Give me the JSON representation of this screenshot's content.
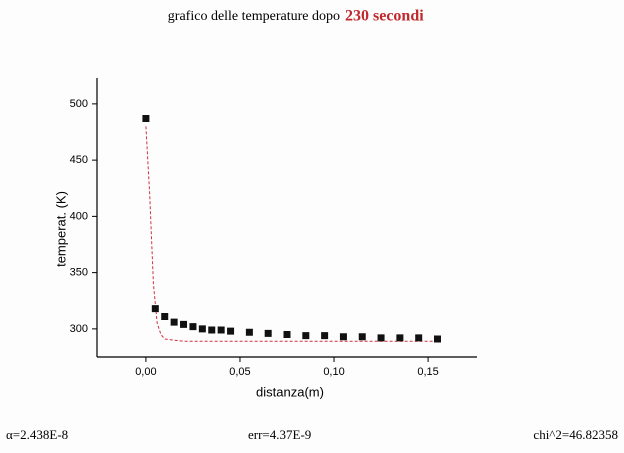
{
  "chart_data": {
    "type": "scatter",
    "title": "grafico delle temperature dopo",
    "title_highlight": "230 secondi",
    "x_label": "distanza(m)",
    "y_label": "temperat. (K)",
    "xlim": [
      -0.026,
      0.176
    ],
    "ylim": [
      275,
      523
    ],
    "xticks": [
      {
        "value": 0,
        "label": "0,00"
      },
      {
        "value": 0.05,
        "label": "0,05"
      },
      {
        "value": 0.1,
        "label": "0,10"
      },
      {
        "value": 0.15,
        "label": "0,15"
      }
    ],
    "yticks": [
      300,
      350,
      400,
      450,
      500
    ],
    "series": [
      {
        "kind": "points",
        "color": "#111111",
        "x": [
          0,
          0.005,
          0.01,
          0.015,
          0.02,
          0.025,
          0.03,
          0.035,
          0.04,
          0.045,
          0.055,
          0.065,
          0.075,
          0.085,
          0.095,
          0.105,
          0.115,
          0.125,
          0.135,
          0.145,
          0.155
        ],
        "values": [
          487,
          318,
          311,
          306,
          304,
          302,
          300,
          299,
          299,
          298,
          297,
          296,
          295,
          294,
          294,
          293,
          293,
          292,
          292,
          292,
          291
        ]
      },
      {
        "kind": "fit",
        "color": "#d03040",
        "x": [
          0,
          0.002,
          0.004,
          0.006,
          0.008,
          0.01,
          0.02,
          0.05,
          0.1,
          0.155
        ],
        "values": [
          480,
          420,
          340,
          305,
          295,
          291,
          289,
          289,
          289,
          289
        ]
      }
    ],
    "footer": [
      "α=2.438E-8",
      "err=4.37E-9",
      "chi^2=46.82358"
    ]
  }
}
